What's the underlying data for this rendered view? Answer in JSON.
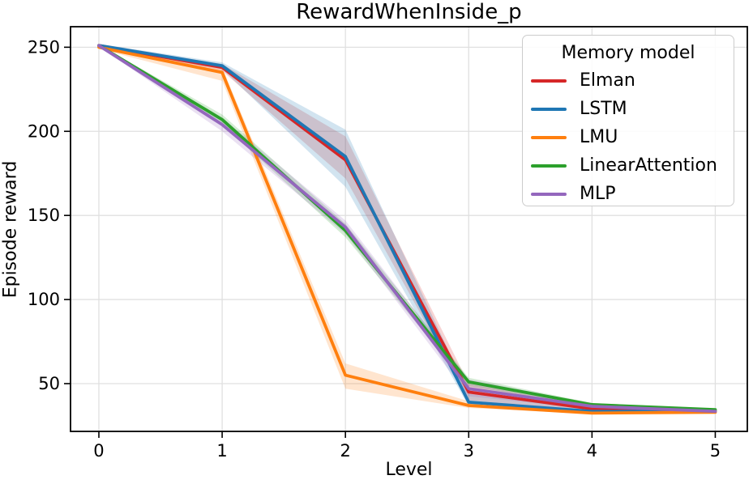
{
  "chart_data": {
    "type": "line",
    "title": "RewardWhenInside_p",
    "xlabel": "Level",
    "ylabel": "Episode reward",
    "legend_title": "Memory model",
    "legend_position": "upper right",
    "grid": true,
    "background_color": "#ffffff",
    "grid_color": "#e0e0e0",
    "spine_color": "#000000",
    "x": [
      0,
      1,
      2,
      3,
      4,
      5
    ],
    "xticks": [
      0,
      1,
      2,
      3,
      4,
      5
    ],
    "yticks": [
      50,
      100,
      150,
      200,
      250
    ],
    "xlim": [
      -0.23,
      5.26
    ],
    "ylim": [
      21.6,
      262.2
    ],
    "band_opacity": 0.2,
    "series": [
      {
        "name": "Elman",
        "color": "#d62728",
        "values": [
          251,
          238,
          183,
          45,
          35,
          34
        ],
        "band_lower": [
          250,
          236,
          172,
          40,
          34,
          33.5
        ],
        "band_upper": [
          252,
          240,
          197,
          50,
          36.5,
          34.5
        ]
      },
      {
        "name": "LSTM",
        "color": "#1f77b4",
        "values": [
          251,
          239,
          185,
          39,
          33.5,
          33.5
        ],
        "band_lower": [
          250,
          237,
          167,
          36.5,
          33,
          33
        ],
        "band_upper": [
          252,
          241,
          201,
          44,
          34.5,
          34
        ]
      },
      {
        "name": "LMU",
        "color": "#ff7f0e",
        "values": [
          250,
          235,
          55,
          37,
          32.5,
          33
        ],
        "band_lower": [
          249,
          230,
          47,
          35.5,
          32,
          32.5
        ],
        "band_upper": [
          251,
          238,
          62,
          39.5,
          33,
          33.5
        ]
      },
      {
        "name": "LinearAttention",
        "color": "#2ca02c",
        "values": [
          251,
          207,
          141,
          51,
          37.5,
          34.5
        ],
        "band_lower": [
          250.5,
          204,
          137,
          48.5,
          36.5,
          34
        ],
        "band_upper": [
          251.5,
          210,
          145,
          53.5,
          38.5,
          35
        ]
      },
      {
        "name": "MLP",
        "color": "#9467bd",
        "values": [
          251,
          204,
          143,
          47,
          36.5,
          33.5
        ],
        "band_lower": [
          250.5,
          200,
          139,
          42.5,
          35,
          33
        ],
        "band_upper": [
          251.5,
          208,
          147,
          52.5,
          38,
          34
        ]
      }
    ]
  }
}
